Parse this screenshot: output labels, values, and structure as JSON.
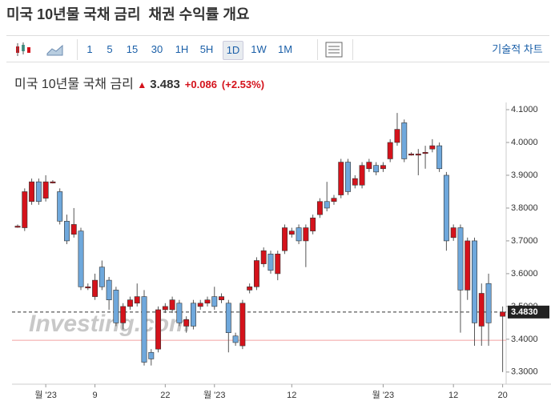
{
  "header": {
    "title": "미국 10년물 국채 금리",
    "subtitle": "채권 수익률 개요"
  },
  "toolbar": {
    "intervals": [
      "1",
      "5",
      "15",
      "30",
      "1H",
      "5H",
      "1D",
      "1W",
      "1M"
    ],
    "active": "1D",
    "technical_chart": "기술적 차트"
  },
  "quote": {
    "name": "미국 10년물 국채 금리",
    "price": "3.483",
    "change": "+0.086",
    "change_pct": "(+2.53%)"
  },
  "chart_data": {
    "type": "candlestick",
    "watermark": "Investing.com",
    "x": [
      0,
      1,
      2,
      3,
      4,
      5,
      6,
      7,
      8,
      9,
      10,
      11,
      12,
      13,
      14,
      15,
      16,
      17,
      18,
      19,
      20,
      21,
      22,
      23,
      24,
      25,
      26,
      27,
      28,
      29,
      30,
      31,
      32,
      33,
      34,
      35,
      36,
      37,
      38,
      39,
      40,
      41,
      42,
      43,
      44,
      45,
      46,
      47,
      48,
      49,
      50,
      51,
      52,
      53,
      54,
      55,
      56,
      57,
      58,
      59,
      60,
      61,
      62,
      63,
      64,
      65,
      66,
      67,
      69
    ],
    "open": [
      3.745,
      3.74,
      3.82,
      3.88,
      3.83,
      3.88,
      3.85,
      3.76,
      3.72,
      3.73,
      3.56,
      3.53,
      3.62,
      3.58,
      3.55,
      3.45,
      3.5,
      3.51,
      3.53,
      3.36,
      3.37,
      3.49,
      3.49,
      3.51,
      3.44,
      3.51,
      3.5,
      3.51,
      3.53,
      3.52,
      3.51,
      3.41,
      3.38,
      3.55,
      3.56,
      3.63,
      3.66,
      3.6,
      3.67,
      3.72,
      3.74,
      3.7,
      3.73,
      3.78,
      3.82,
      3.82,
      3.84,
      3.94,
      3.87,
      3.87,
      3.92,
      3.93,
      3.92,
      3.95,
      4.0,
      4.06,
      3.965,
      3.965,
      3.97,
      3.98,
      3.99,
      3.9,
      3.71,
      3.74,
      3.55,
      3.7,
      3.44,
      3.57,
      3.47
    ],
    "high": [
      3.75,
      3.86,
      3.89,
      3.89,
      3.9,
      3.885,
      3.86,
      3.78,
      3.8,
      3.74,
      3.57,
      3.6,
      3.64,
      3.59,
      3.56,
      3.51,
      3.53,
      3.57,
      3.55,
      3.37,
      3.5,
      3.51,
      3.53,
      3.52,
      3.47,
      3.52,
      3.52,
      3.53,
      3.56,
      3.54,
      3.52,
      3.42,
      3.52,
      3.57,
      3.65,
      3.68,
      3.67,
      3.67,
      3.75,
      3.74,
      3.75,
      3.75,
      3.78,
      3.83,
      3.88,
      3.84,
      3.95,
      3.95,
      3.9,
      3.94,
      3.95,
      3.94,
      3.94,
      4.01,
      4.09,
      4.07,
      3.97,
      3.98,
      3.99,
      4.01,
      4.0,
      3.91,
      3.75,
      3.75,
      3.71,
      3.71,
      3.57,
      3.6,
      3.5
    ],
    "low": [
      3.74,
      3.73,
      3.81,
      3.81,
      3.82,
      3.875,
      3.75,
      3.69,
      3.71,
      3.55,
      3.55,
      3.52,
      3.55,
      3.49,
      3.44,
      3.43,
      3.49,
      3.5,
      3.32,
      3.32,
      3.36,
      3.48,
      3.48,
      3.44,
      3.42,
      3.43,
      3.49,
      3.5,
      3.49,
      3.51,
      3.36,
      3.38,
      3.37,
      3.54,
      3.55,
      3.62,
      3.6,
      3.58,
      3.66,
      3.71,
      3.69,
      3.62,
      3.72,
      3.77,
      3.79,
      3.81,
      3.83,
      3.84,
      3.86,
      3.86,
      3.91,
      3.9,
      3.91,
      3.94,
      3.99,
      3.94,
      3.96,
      3.9,
      3.92,
      3.97,
      3.91,
      3.67,
      3.7,
      3.42,
      3.52,
      3.38,
      3.38,
      3.38,
      3.3
    ],
    "close": [
      3.745,
      3.85,
      3.88,
      3.82,
      3.88,
      3.88,
      3.76,
      3.7,
      3.75,
      3.56,
      3.56,
      3.58,
      3.56,
      3.52,
      3.45,
      3.5,
      3.52,
      3.53,
      3.33,
      3.34,
      3.49,
      3.5,
      3.52,
      3.45,
      3.46,
      3.44,
      3.51,
      3.52,
      3.5,
      3.53,
      3.42,
      3.39,
      3.51,
      3.56,
      3.64,
      3.67,
      3.61,
      3.66,
      3.74,
      3.73,
      3.7,
      3.74,
      3.77,
      3.82,
      3.8,
      3.83,
      3.94,
      3.85,
      3.89,
      3.93,
      3.94,
      3.91,
      3.93,
      4.0,
      4.04,
      3.95,
      3.965,
      3.965,
      3.97,
      3.99,
      3.92,
      3.7,
      3.74,
      3.55,
      3.7,
      3.45,
      3.54,
      3.45,
      3.483
    ],
    "up_color": "#d4121b",
    "down_color": "#6fa8dc",
    "xlim": [
      -0.8,
      69.5
    ],
    "ylim": [
      3.263,
      4.122
    ],
    "xticks": [
      {
        "value": 4,
        "label": "월 '23"
      },
      {
        "value": 11,
        "label": "9"
      },
      {
        "value": 21,
        "label": "22"
      },
      {
        "value": 28,
        "label": "월 '23"
      },
      {
        "value": 39,
        "label": "12"
      },
      {
        "value": 52,
        "label": "월 '23"
      },
      {
        "value": 62,
        "label": "12"
      },
      {
        "value": 69,
        "label": "20"
      }
    ],
    "yticks": [
      {
        "value": 3.3,
        "label": "3.3000"
      },
      {
        "value": 3.4,
        "label": "3.4000"
      },
      {
        "value": 3.5,
        "label": "3.5000"
      },
      {
        "value": 3.6,
        "label": "3.6000"
      },
      {
        "value": 3.7,
        "label": "3.7000"
      },
      {
        "value": 3.8,
        "label": "3.8000"
      },
      {
        "value": 3.9,
        "label": "3.9000"
      },
      {
        "value": 4.0,
        "label": "4.0000"
      },
      {
        "value": 4.1,
        "label": "4.1000"
      }
    ],
    "last_price": {
      "value": 3.483,
      "label": "3.4830"
    },
    "reference_line": 3.397
  }
}
